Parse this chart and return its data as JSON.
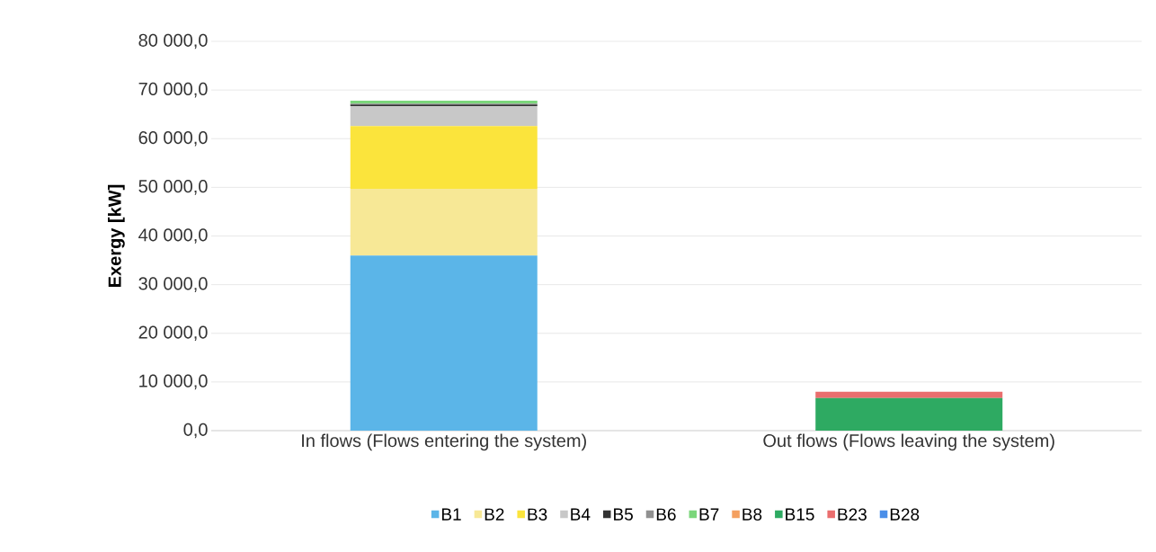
{
  "chart_data": {
    "type": "bar",
    "stacked": true,
    "ylabel": "Exergy [kW]",
    "categories": [
      "In flows (Flows entering the system)",
      "Out flows (Flows leaving the system)"
    ],
    "series": [
      {
        "name": "B1",
        "color": "#5bb5e8",
        "values": [
          36000,
          0
        ]
      },
      {
        "name": "B2",
        "color": "#f7e896",
        "values": [
          13700,
          0
        ]
      },
      {
        "name": "B3",
        "color": "#fbe43c",
        "values": [
          12900,
          0
        ]
      },
      {
        "name": "B4",
        "color": "#c8c8c8",
        "values": [
          4100,
          0
        ]
      },
      {
        "name": "B5",
        "color": "#333333",
        "values": [
          300,
          0
        ]
      },
      {
        "name": "B6",
        "color": "#909090",
        "values": [
          200,
          0
        ]
      },
      {
        "name": "B7",
        "color": "#7bd67b",
        "values": [
          600,
          0
        ]
      },
      {
        "name": "B8",
        "color": "#f4a060",
        "values": [
          0,
          0
        ]
      },
      {
        "name": "B15",
        "color": "#2eaa62",
        "values": [
          0,
          6700
        ]
      },
      {
        "name": "B23",
        "color": "#ea6e6e",
        "values": [
          0,
          1300
        ]
      },
      {
        "name": "B28",
        "color": "#4a8ee8",
        "values": [
          0,
          0
        ]
      }
    ],
    "ylim": [
      0,
      80000
    ],
    "yticks": [
      {
        "value": 0,
        "label": "0,0"
      },
      {
        "value": 10000,
        "label": "10 000,0"
      },
      {
        "value": 20000,
        "label": "20 000,0"
      },
      {
        "value": 30000,
        "label": "30 000,0"
      },
      {
        "value": 40000,
        "label": "40 000,0"
      },
      {
        "value": 50000,
        "label": "50 000,0"
      },
      {
        "value": 60000,
        "label": "60 000,0"
      },
      {
        "value": 70000,
        "label": "70 000,0"
      },
      {
        "value": 80000,
        "label": "80 000,0"
      }
    ],
    "grid": "y",
    "legend": "bottom"
  }
}
